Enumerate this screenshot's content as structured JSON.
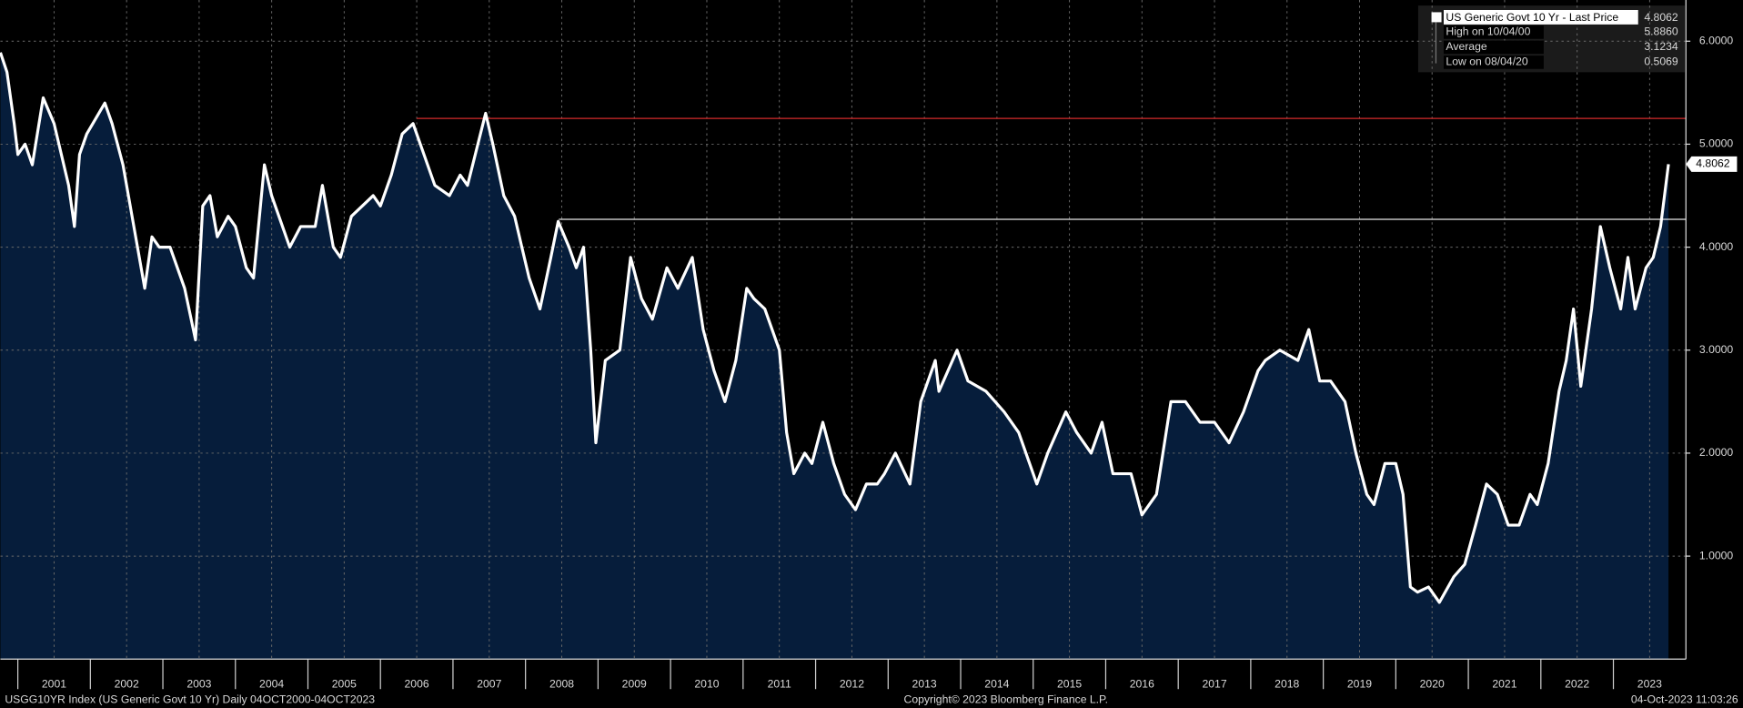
{
  "chart_data": {
    "type": "area",
    "xlim": [
      2000.76,
      2024.0
    ],
    "ylim": [
      0,
      6.4
    ],
    "xticks": [
      2001,
      2002,
      2003,
      2004,
      2005,
      2006,
      2007,
      2008,
      2009,
      2010,
      2011,
      2012,
      2013,
      2014,
      2015,
      2016,
      2017,
      2018,
      2019,
      2020,
      2021,
      2022,
      2023
    ],
    "yticks": [
      {
        "value": 1,
        "label": "1.0000"
      },
      {
        "value": 2,
        "label": "2.0000"
      },
      {
        "value": 3,
        "label": "3.0000"
      },
      {
        "value": 4,
        "label": "4.0000"
      },
      {
        "value": 5,
        "label": "5.0000"
      },
      {
        "value": 6,
        "label": "6.0000"
      }
    ],
    "grid": true,
    "series": [
      {
        "name": "US Generic Govt 10 Yr - Last Price",
        "color": "#ffffff",
        "fill": "#061d3b",
        "x": [
          2000.76,
          2000.85,
          2000.95,
          2001.0,
          2001.1,
          2001.2,
          2001.35,
          2001.5,
          2001.7,
          2001.78,
          2001.85,
          2001.95,
          2002.2,
          2002.3,
          2002.45,
          2002.6,
          2002.75,
          2002.85,
          2002.95,
          2003.1,
          2003.3,
          2003.45,
          2003.55,
          2003.65,
          2003.75,
          2003.9,
          2004.0,
          2004.15,
          2004.25,
          2004.4,
          2004.5,
          2004.65,
          2004.75,
          2004.9,
          2005.1,
          2005.2,
          2005.35,
          2005.45,
          2005.6,
          2005.75,
          2005.9,
          2006.0,
          2006.15,
          2006.3,
          2006.45,
          2006.6,
          2006.75,
          2006.95,
          2007.1,
          2007.2,
          2007.45,
          2007.55,
          2007.7,
          2007.85,
          2007.95,
          2008.05,
          2008.2,
          2008.35,
          2008.45,
          2008.6,
          2008.7,
          2008.8,
          2008.9,
          2008.97,
          2009.1,
          2009.3,
          2009.45,
          2009.6,
          2009.75,
          2009.95,
          2010.1,
          2010.3,
          2010.45,
          2010.6,
          2010.75,
          2010.9,
          2011.05,
          2011.15,
          2011.3,
          2011.5,
          2011.6,
          2011.7,
          2011.85,
          2011.95,
          2012.1,
          2012.25,
          2012.4,
          2012.55,
          2012.7,
          2012.85,
          2012.95,
          2013.1,
          2013.3,
          2013.45,
          2013.65,
          2013.7,
          2013.95,
          2014.1,
          2014.35,
          2014.6,
          2014.8,
          2015.05,
          2015.2,
          2015.45,
          2015.6,
          2015.8,
          2015.95,
          2016.1,
          2016.35,
          2016.5,
          2016.7,
          2016.9,
          2017.1,
          2017.3,
          2017.5,
          2017.7,
          2017.9,
          2018.1,
          2018.2,
          2018.4,
          2018.65,
          2018.8,
          2018.95,
          2019.1,
          2019.3,
          2019.45,
          2019.6,
          2019.7,
          2019.85,
          2020.0,
          2020.1,
          2020.2,
          2020.3,
          2020.45,
          2020.6,
          2020.8,
          2020.95,
          2021.1,
          2021.25,
          2021.4,
          2021.55,
          2021.7,
          2021.85,
          2021.95,
          2022.1,
          2022.25,
          2022.35,
          2022.45,
          2022.55,
          2022.7,
          2022.82,
          2022.95,
          2023.1,
          2023.2,
          2023.3,
          2023.45,
          2023.55,
          2023.65,
          2023.76
        ],
        "values": [
          5.89,
          5.7,
          5.2,
          4.9,
          5.0,
          4.8,
          5.45,
          5.2,
          4.6,
          4.2,
          4.9,
          5.1,
          5.4,
          5.2,
          4.8,
          4.2,
          3.6,
          4.1,
          4.0,
          4.0,
          3.6,
          3.1,
          4.4,
          4.5,
          4.1,
          4.3,
          4.2,
          3.8,
          3.7,
          4.8,
          4.5,
          4.2,
          4.0,
          4.2,
          4.2,
          4.6,
          4.0,
          3.9,
          4.3,
          4.4,
          4.5,
          4.4,
          4.7,
          5.1,
          5.2,
          4.9,
          4.6,
          4.5,
          4.7,
          4.6,
          5.3,
          5.0,
          4.5,
          4.3,
          4.0,
          3.7,
          3.4,
          3.9,
          4.25,
          4.0,
          3.8,
          4.0,
          3.0,
          2.1,
          2.9,
          3.0,
          3.9,
          3.5,
          3.3,
          3.8,
          3.6,
          3.9,
          3.2,
          2.8,
          2.5,
          2.9,
          3.6,
          3.5,
          3.4,
          3.0,
          2.2,
          1.8,
          2.0,
          1.9,
          2.3,
          1.9,
          1.6,
          1.45,
          1.7,
          1.7,
          1.8,
          2.0,
          1.7,
          2.5,
          2.9,
          2.6,
          3.0,
          2.7,
          2.6,
          2.4,
          2.2,
          1.7,
          2.0,
          2.4,
          2.2,
          2.0,
          2.3,
          1.8,
          1.8,
          1.4,
          1.6,
          2.5,
          2.5,
          2.3,
          2.3,
          2.1,
          2.4,
          2.8,
          2.9,
          3.0,
          2.9,
          3.2,
          2.7,
          2.7,
          2.5,
          2.0,
          1.6,
          1.5,
          1.9,
          1.9,
          1.6,
          0.7,
          0.65,
          0.7,
          0.55,
          0.8,
          0.92,
          1.3,
          1.7,
          1.6,
          1.3,
          1.3,
          1.6,
          1.5,
          1.9,
          2.6,
          2.9,
          3.4,
          2.65,
          3.4,
          4.2,
          3.8,
          3.4,
          3.9,
          3.4,
          3.8,
          3.9,
          4.2,
          4.8062
        ]
      }
    ],
    "stats": {
      "names": [
        "High on 10/04/00",
        "Average",
        "Low on 08/04/20"
      ],
      "values": [
        5.886,
        3.1234,
        0.5069
      ],
      "value_labels": [
        "5.8860",
        "3.1234",
        "0.5069"
      ]
    },
    "reference_lines": [
      {
        "value": 5.25,
        "start": 2006.5,
        "color": "#d42a2a"
      },
      {
        "value": 4.27,
        "start": 2008.46,
        "color": "#e8e8e8"
      }
    ],
    "footer": {
      "left": "USGG10YR Index (US Generic Govt 10 Yr)  Daily 04OCT2000-04OCT2023",
      "center": "Copyright© 2023 Bloomberg Finance L.P.",
      "right": "04-Oct-2023 11:03:26"
    }
  }
}
